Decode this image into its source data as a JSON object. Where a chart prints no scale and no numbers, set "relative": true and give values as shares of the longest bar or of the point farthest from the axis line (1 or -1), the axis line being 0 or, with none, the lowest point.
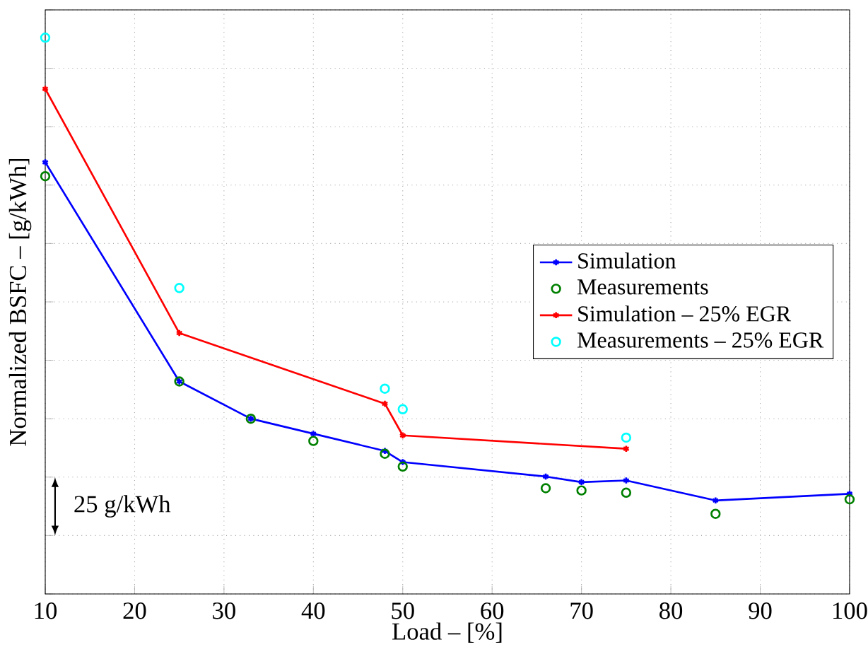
{
  "chart_data": {
    "type": "line",
    "relative": true,
    "xlabel": "Load – [%]",
    "ylabel": "Normalized BSFC – [g/kWh]",
    "annotations": [
      "25 g/kWh"
    ],
    "xlim": [
      10,
      100
    ],
    "xticks": [
      10,
      20,
      30,
      40,
      50,
      60,
      70,
      80,
      90,
      100
    ],
    "grid": true,
    "legend": "right",
    "tick_labels": "x",
    "series": [
      {
        "name": "Simulation",
        "color": "#0000ff",
        "marker": "cross",
        "x": [
          10,
          25,
          33,
          40,
          48,
          50,
          66,
          70,
          75,
          85,
          100
        ],
        "values": [
          0.776,
          0.382,
          0.315,
          0.288,
          0.257,
          0.237,
          0.211,
          0.201,
          0.204,
          0.168,
          0.18
        ]
      },
      {
        "name": "Measurements",
        "type": "scatter",
        "color": "#008000",
        "marker": "circle",
        "x": [
          10,
          25,
          33,
          40,
          48,
          50,
          66,
          70,
          75,
          85,
          100
        ],
        "values": [
          0.751,
          0.382,
          0.315,
          0.275,
          0.252,
          0.229,
          0.19,
          0.186,
          0.182,
          0.144,
          0.17
        ]
      },
      {
        "name": "Simulation – 25% EGR",
        "color": "#ff0000",
        "marker": "cross",
        "x": [
          10,
          25,
          48,
          50,
          75
        ],
        "values": [
          0.908,
          0.469,
          0.342,
          0.285,
          0.261
        ]
      },
      {
        "name": "Measurements – 25% EGR",
        "type": "scatter",
        "color": "#00ffff",
        "marker": "circle",
        "x": [
          10,
          25,
          48,
          50,
          75
        ],
        "values": [
          1,
          0.55,
          0.369,
          0.332,
          0.281
        ]
      }
    ]
  }
}
